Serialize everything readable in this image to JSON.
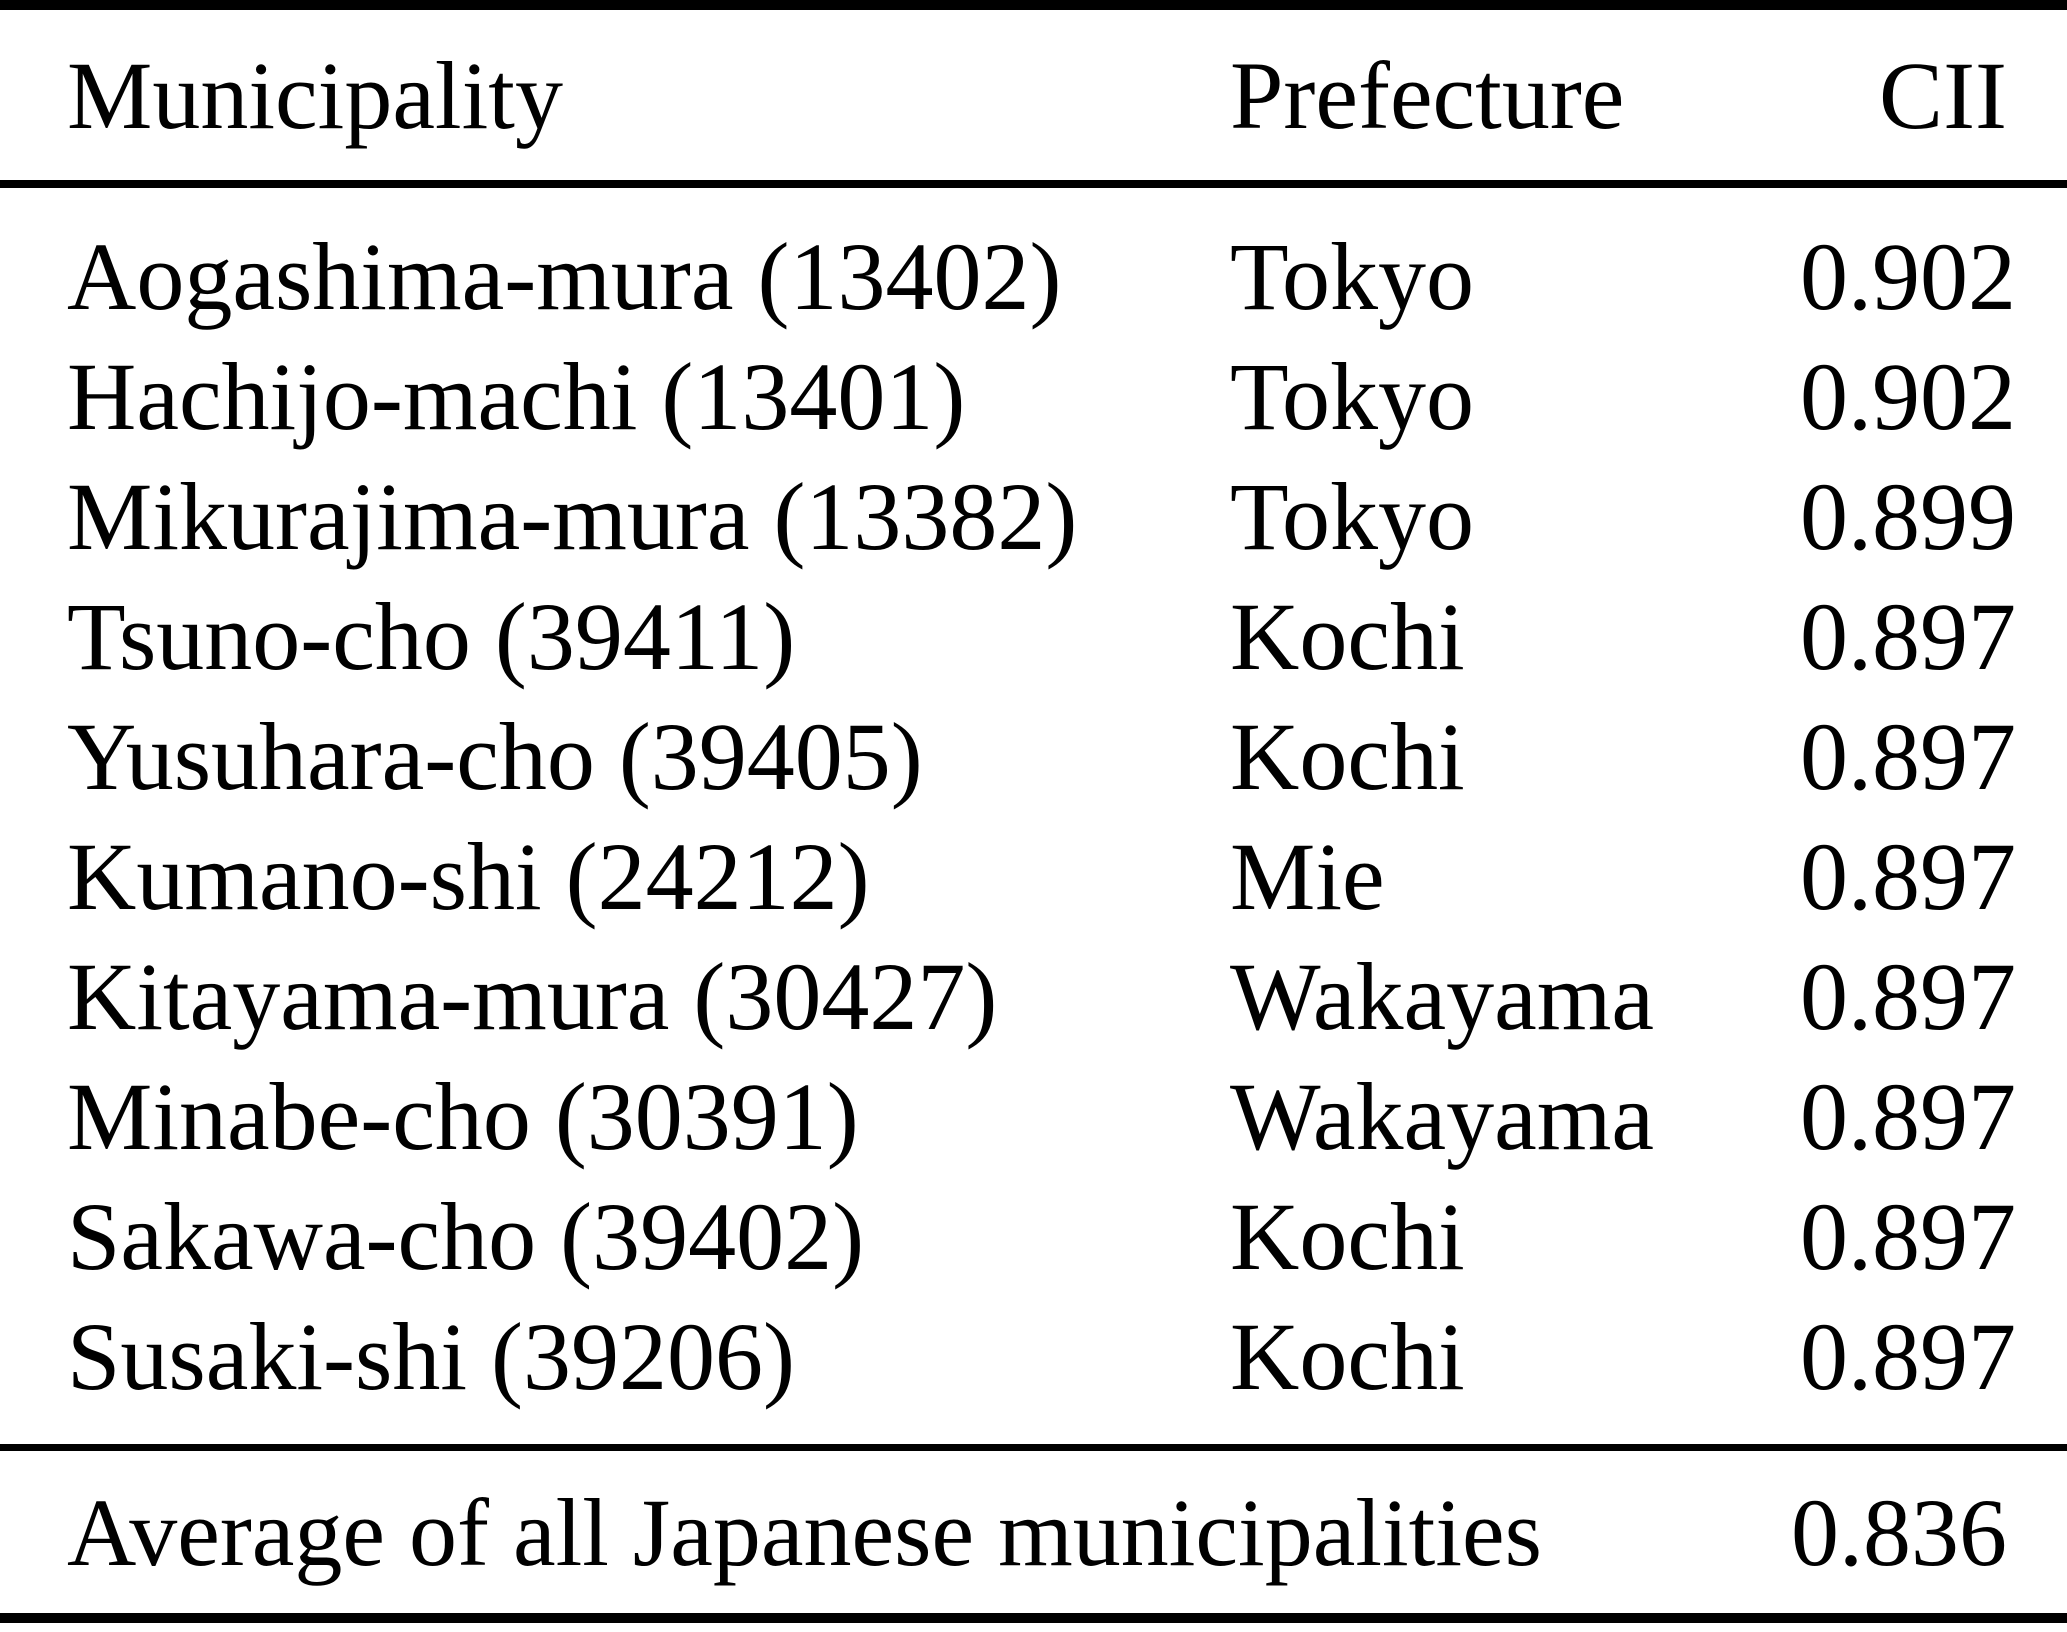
{
  "colors": {
    "text": "#000000",
    "background": "#ffffff",
    "rule": "#000000"
  },
  "table": {
    "columns": [
      "Municipality",
      "Prefecture",
      "CII"
    ],
    "rows": [
      {
        "municipality": "Aogashima-mura (13402)",
        "prefecture": "Tokyo",
        "cii": "0.902"
      },
      {
        "municipality": "Hachijo-machi (13401)",
        "prefecture": "Tokyo",
        "cii": "0.902"
      },
      {
        "municipality": "Mikurajima-mura (13382)",
        "prefecture": "Tokyo",
        "cii": "0.899"
      },
      {
        "municipality": "Tsuno-cho (39411)",
        "prefecture": "Kochi",
        "cii": "0.897"
      },
      {
        "municipality": "Yusuhara-cho (39405)",
        "prefecture": "Kochi",
        "cii": "0.897"
      },
      {
        "municipality": "Kumano-shi (24212)",
        "prefecture": "Mie",
        "cii": "0.897"
      },
      {
        "municipality": "Kitayama-mura (30427)",
        "prefecture": "Wakayama",
        "cii": "0.897"
      },
      {
        "municipality": "Minabe-cho (30391)",
        "prefecture": "Wakayama",
        "cii": "0.897"
      },
      {
        "municipality": "Sakawa-cho (39402)",
        "prefecture": "Kochi",
        "cii": "0.897"
      },
      {
        "municipality": "Susaki-shi (39206)",
        "prefecture": "Kochi",
        "cii": "0.897"
      }
    ],
    "footer": {
      "label": "Average of all Japanese municipalities",
      "cii": "0.836"
    }
  }
}
